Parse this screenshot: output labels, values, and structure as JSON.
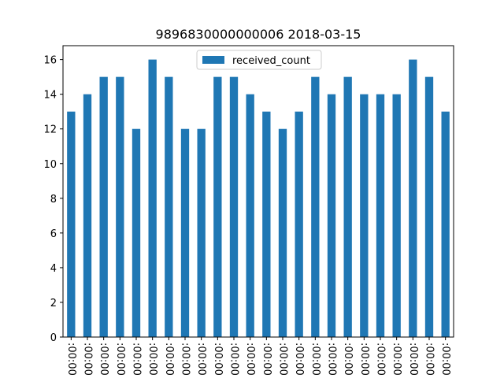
{
  "chart_data": {
    "type": "bar",
    "title": "9896830000000006 2018-03-15",
    "xlabel": "",
    "ylabel": "",
    "categories": [
      ":00:00",
      ":00:00",
      ":00:00",
      ":00:00",
      ":00:00",
      ":00:00",
      ":00:00",
      ":00:00",
      ":00:00",
      ":00:00",
      ":00:00",
      ":00:00",
      ":00:00",
      ":00:00",
      ":00:00",
      ":00:00",
      ":00:00",
      ":00:00",
      ":00:00",
      ":00:00",
      ":00:00",
      ":00:00",
      ":00:00",
      ":00:00"
    ],
    "series": [
      {
        "name": "received_count",
        "color": "#1f77b4",
        "values": [
          13,
          14,
          15,
          15,
          12,
          16,
          15,
          12,
          12,
          15,
          15,
          14,
          13,
          12,
          13,
          15,
          14,
          15,
          14,
          14,
          14,
          16,
          15,
          13
        ]
      }
    ],
    "ylim": [
      0,
      16.8
    ],
    "yticks": [
      0,
      2,
      4,
      6,
      8,
      10,
      12,
      14,
      16
    ],
    "grid": false,
    "legend_position": "top-center"
  }
}
